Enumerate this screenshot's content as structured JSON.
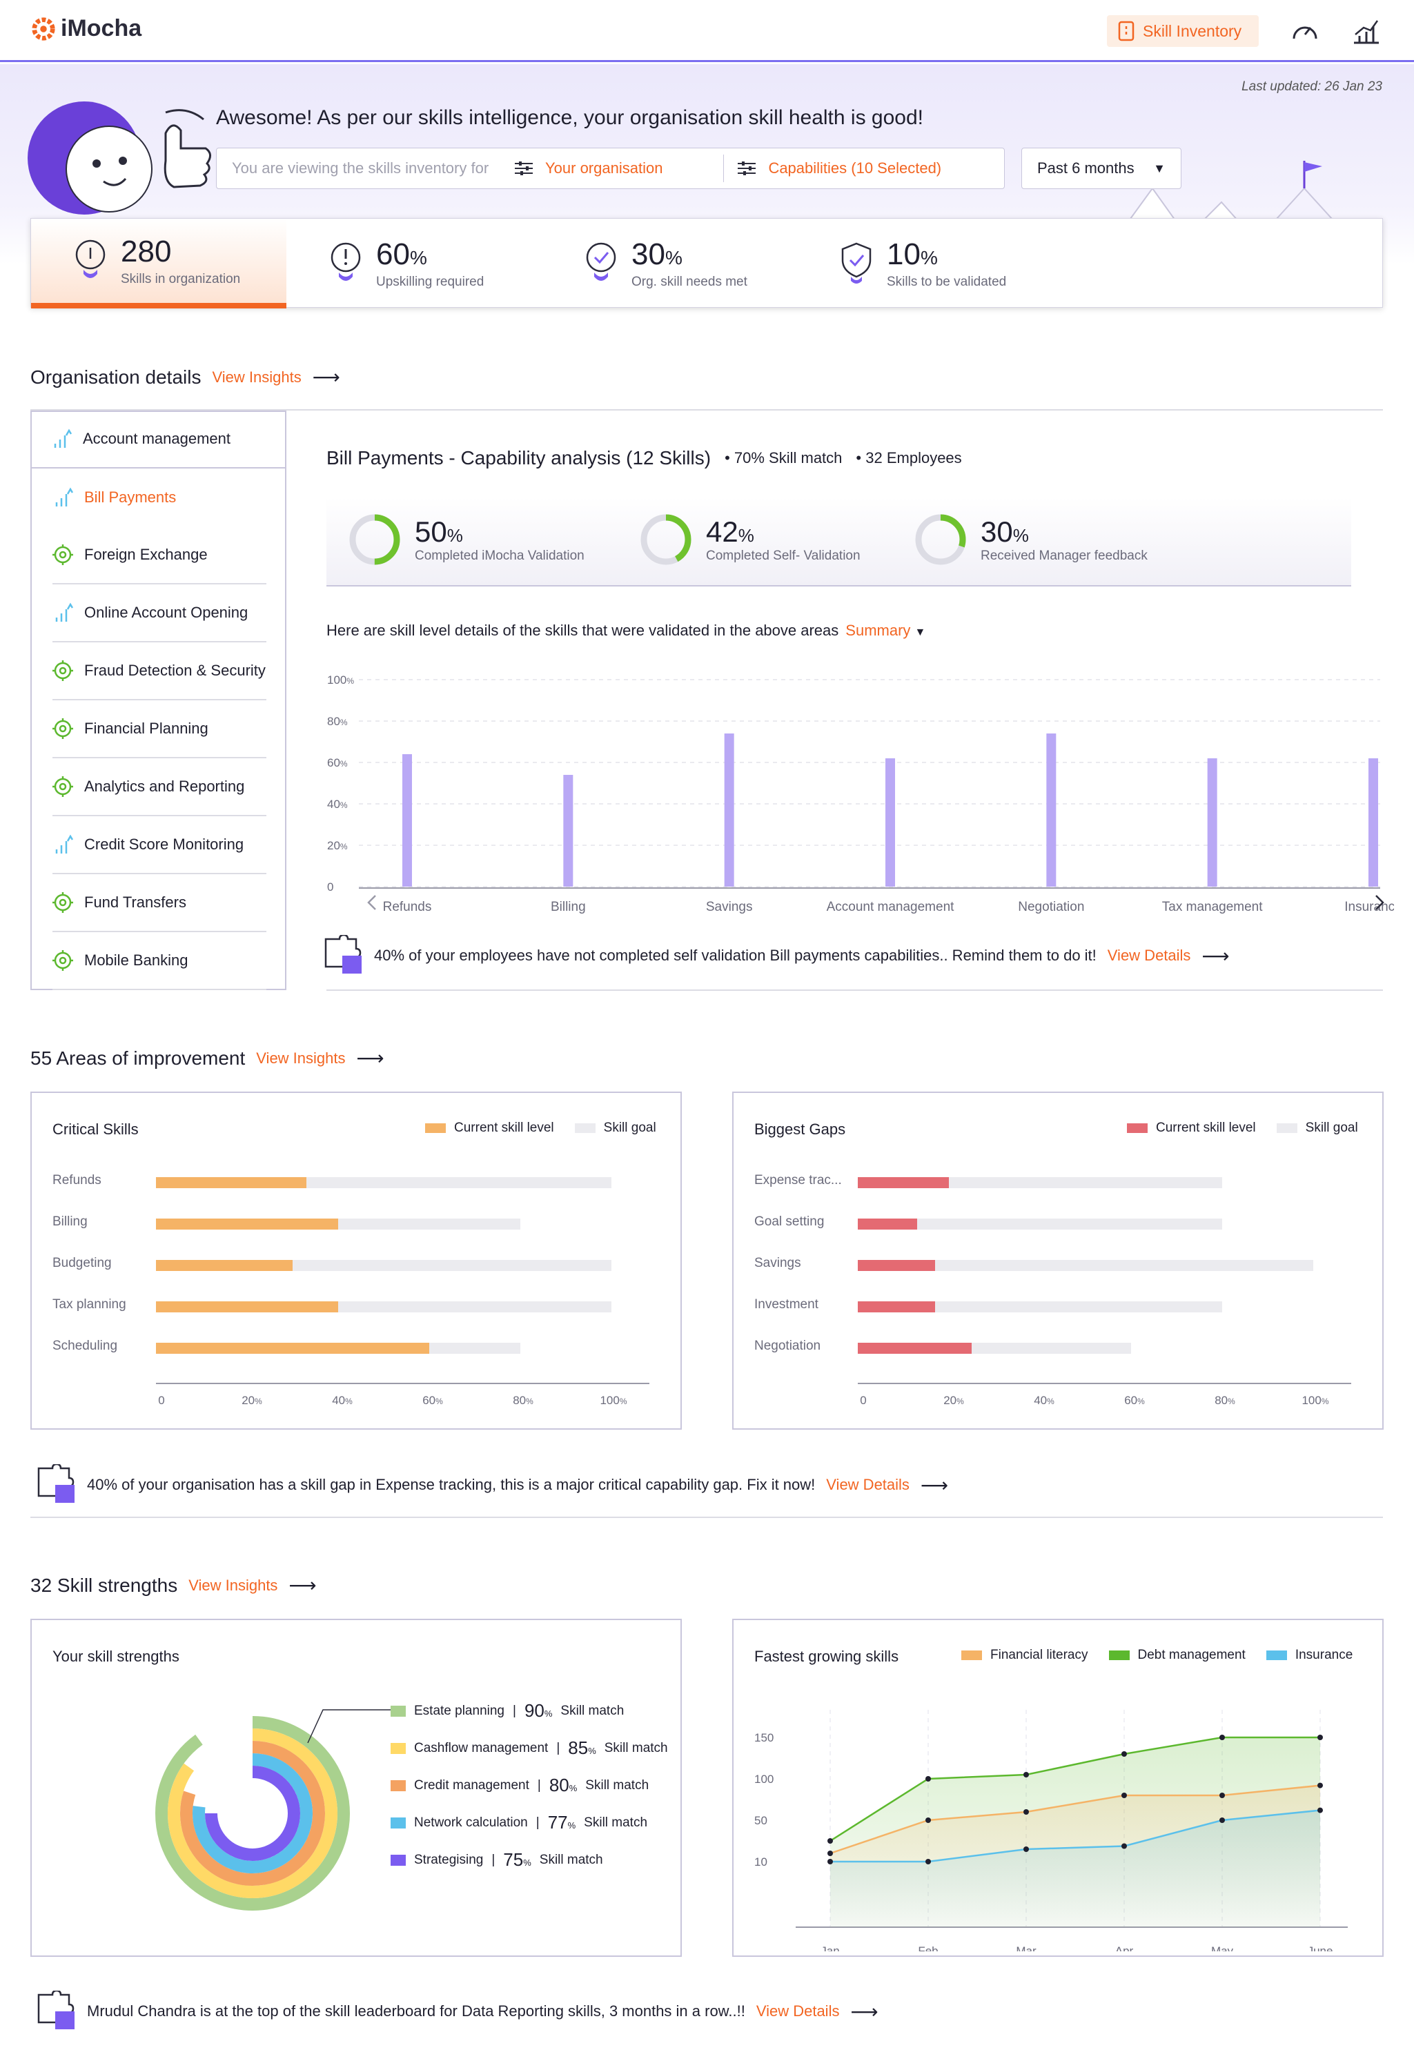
{
  "header": {
    "brand": "iMocha",
    "skill_inventory_label": "Skill Inventory"
  },
  "hero": {
    "greeting": "Awesome! As per our skills intelligence, your organisation skill health is good!",
    "last_updated": "Last updated: 26 Jan 23",
    "filter_prefix": "You are viewing the skills inventory for",
    "org_filter": "Your organisation",
    "capability_filter": "Capabilities (10 Selected)",
    "period": "Past 6 months"
  },
  "stats": [
    {
      "value": "280",
      "unit": "",
      "label": "Skills in organization"
    },
    {
      "value": "60",
      "unit": "%",
      "label": "Upskilling required"
    },
    {
      "value": "30",
      "unit": "%",
      "label": "Org. skill needs met"
    },
    {
      "value": "10",
      "unit": "%",
      "label": "Skills to be validated"
    }
  ],
  "org": {
    "title": "Organisation details",
    "view_insights": "View Insights",
    "capabilities": [
      {
        "label": "Account management",
        "icon": "growth-chart-icon"
      },
      {
        "label": "Bill Payments",
        "icon": "growth-chart-icon"
      },
      {
        "label": "Foreign Exchange",
        "icon": "target-icon"
      },
      {
        "label": "Online Account Opening",
        "icon": "growth-chart-icon"
      },
      {
        "label": "Fraud Detection & Security",
        "icon": "target-icon"
      },
      {
        "label": "Financial Planning",
        "icon": "target-icon"
      },
      {
        "label": "Analytics and Reporting",
        "icon": "target-icon"
      },
      {
        "label": "Credit Score Monitoring",
        "icon": "growth-chart-icon"
      },
      {
        "label": "Fund Transfers",
        "icon": "target-icon"
      },
      {
        "label": "Mobile Banking",
        "icon": "target-icon"
      }
    ],
    "analysis_title": "Bill Payments - Capability analysis (12 Skills)",
    "skill_match": "70% Skill match",
    "employees": "32 Employees",
    "validations": [
      {
        "value": 50,
        "label": "Completed iMocha Validation"
      },
      {
        "value": 42,
        "label": "Completed Self- Validation"
      },
      {
        "value": 30,
        "label": "Received Manager feedback"
      }
    ],
    "level_text": "Here are skill level details of the skills that were validated in the above areas",
    "summary_label": "Summary",
    "insight": "40% of your employees have not completed self validation Bill payments capabilities.. Remind them to do it!",
    "view_details": "View Details"
  },
  "improvement": {
    "title": "55 Areas of improvement",
    "view_insights": "View Insights",
    "insight": "40% of your organisation has a skill gap in Expense tracking, this is a major critical capability gap. Fix it now!",
    "view_details": "View Details"
  },
  "strengths": {
    "title": "32 Skill strengths",
    "view_insights": "View Insights",
    "insight": "Mrudul Chandra is at the top of the skill leaderboard for Data Reporting skills, 3 months in a row..!!",
    "view_details": "View Details"
  },
  "colors": {
    "accent": "#f26522",
    "purple": "#7b5cf0",
    "bar_purple": "#b9a8f5",
    "critical": "#f5b366",
    "gap": "#e46a72",
    "track": "#ebebef"
  },
  "chart_data": [
    {
      "type": "bar",
      "title": "",
      "categories": [
        "Refunds",
        "Billing",
        "Savings",
        "Account management",
        "Negotiation",
        "Tax management",
        "Insurance"
      ],
      "values": [
        64,
        54,
        74,
        62,
        74,
        62,
        62
      ],
      "ylim": [
        0,
        100
      ],
      "yticks": [
        "0",
        "20",
        "40",
        "60",
        "80",
        "100"
      ]
    },
    {
      "type": "bar",
      "orientation": "horizontal",
      "title": "Critical Skills",
      "categories": [
        "Refunds",
        "Billing",
        "Budgeting",
        "Tax planning",
        "Scheduling"
      ],
      "series": [
        {
          "name": "Current skill level",
          "values": [
            33,
            40,
            30,
            40,
            60
          ]
        },
        {
          "name": "Skill goal",
          "values": [
            100,
            80,
            100,
            100,
            80
          ]
        }
      ],
      "xlim": [
        0,
        100
      ],
      "xticks": [
        "0",
        "20",
        "40",
        "60",
        "80",
        "100"
      ]
    },
    {
      "type": "bar",
      "orientation": "horizontal",
      "title": "Biggest Gaps",
      "categories": [
        "Expense trac...",
        "Goal setting",
        "Savings",
        "Investment",
        "Negotiation"
      ],
      "series": [
        {
          "name": "Current skill level",
          "values": [
            20,
            13,
            17,
            17,
            25
          ]
        },
        {
          "name": "Skill goal",
          "values": [
            80,
            80,
            100,
            80,
            60
          ]
        }
      ],
      "xlim": [
        0,
        100
      ],
      "xticks": [
        "0",
        "20",
        "40",
        "60",
        "80",
        "100"
      ]
    },
    {
      "type": "pie",
      "title": "Your skill strengths",
      "labels": [
        "Estate planning",
        "Cashflow management",
        "Credit management",
        "Network calculation",
        "Strategising"
      ],
      "values": [
        90,
        85,
        80,
        77,
        75
      ],
      "unit_label": "Skill match",
      "colors": [
        "#a9d18e",
        "#ffd966",
        "#f4a261",
        "#5bc0eb",
        "#7b5cf0"
      ]
    },
    {
      "type": "area",
      "title": "Fastest growing skills",
      "x": [
        "Jan",
        "Feb",
        "Mar",
        "Apr",
        "May",
        "June"
      ],
      "series": [
        {
          "name": "Financial literacy",
          "values": [
            18,
            50,
            60,
            80,
            80,
            92
          ],
          "color": "#f5b366"
        },
        {
          "name": "Debt management",
          "values": [
            30,
            100,
            105,
            130,
            150,
            150
          ],
          "color": "#5cb82e"
        },
        {
          "name": "Insurance",
          "values": [
            10,
            10,
            22,
            25,
            50,
            62
          ],
          "color": "#5bc0eb"
        }
      ],
      "yticks": [
        "10",
        "50",
        "100",
        "150"
      ]
    }
  ]
}
